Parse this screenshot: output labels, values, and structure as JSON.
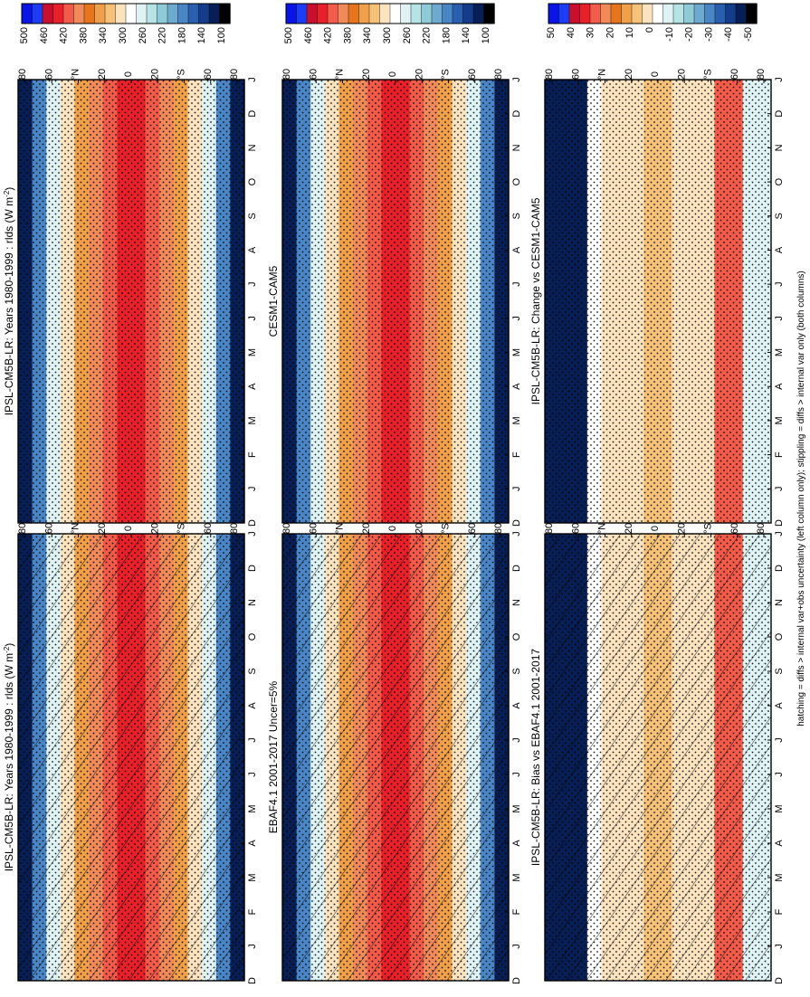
{
  "figure": {
    "footnote": "hatching = diffs > internal var+obs uncertainty (left column only); stippling = diffs > internal var only (both columns)",
    "month_ticks": [
      "D",
      "J",
      "F",
      "M",
      "A",
      "M",
      "J",
      "J",
      "A",
      "S",
      "O",
      "N",
      "D",
      "J"
    ],
    "lat_ticks": [
      "80",
      "60",
      "°N",
      "20",
      "0",
      "20",
      "°S",
      "60",
      "80"
    ]
  },
  "chart_data": [
    {
      "type": "heatmap",
      "title": "IPSL-CM5B-LR: Years 1980-1999 : rlds (W m",
      "title_suffix": "-2",
      "title_close": ")",
      "xlabel": "",
      "ylabel": "",
      "ylim": [
        -90,
        90
      ],
      "colorbar": [
        "500",
        "460",
        "420",
        "380",
        "340",
        "300",
        "260",
        "220",
        "180",
        "140",
        "100"
      ],
      "overlay": "hatch+stipple"
    },
    {
      "type": "heatmap",
      "title": "IPSL-CM5B-LR: Years 1980-1999 : rlds (W m",
      "title_suffix": "-2",
      "title_close": ")",
      "xlabel": "",
      "ylabel": "",
      "ylim": [
        -90,
        90
      ],
      "colorbar": [
        "500",
        "460",
        "420",
        "380",
        "340",
        "300",
        "260",
        "220",
        "180",
        "140",
        "100"
      ],
      "overlay": "stipple"
    },
    {
      "type": "heatmap",
      "title": "EBAF4.1 2001-2017 Uncer=5%",
      "title_suffix": "",
      "title_close": "",
      "xlabel": "",
      "ylabel": "",
      "ylim": [
        -90,
        90
      ],
      "colorbar": [
        "500",
        "460",
        "420",
        "380",
        "340",
        "300",
        "260",
        "220",
        "180",
        "140",
        "100"
      ],
      "overlay": "hatch+stipple"
    },
    {
      "type": "heatmap",
      "title": "CESM1-CAM5",
      "title_suffix": "",
      "title_close": "",
      "xlabel": "",
      "ylabel": "",
      "ylim": [
        -90,
        90
      ],
      "colorbar": [
        "500",
        "460",
        "420",
        "380",
        "340",
        "300",
        "260",
        "220",
        "180",
        "140",
        "100"
      ],
      "overlay": "stipple"
    },
    {
      "type": "heatmap",
      "title": "IPSL-CM5B-LR: Bias vs EBAF4.1 2001-2017",
      "title_suffix": "",
      "title_close": "",
      "xlabel": "",
      "ylabel": "",
      "ylim": [
        -90,
        90
      ],
      "colorbar": [
        "50",
        "40",
        "30",
        "20",
        "10",
        "0",
        "-10",
        "-20",
        "-30",
        "-40",
        "-50"
      ],
      "overlay": "hatch+stipple"
    },
    {
      "type": "heatmap",
      "title": "IPSL-CM5B-LR: Change vs CESM1-CAM5",
      "title_suffix": "",
      "title_close": "",
      "xlabel": "",
      "ylabel": "",
      "ylim": [
        -90,
        90
      ],
      "colorbar": [
        "50",
        "40",
        "30",
        "20",
        "10",
        "0",
        "-10",
        "-20",
        "-30",
        "-40",
        "-50"
      ],
      "overlay": "stipple"
    }
  ],
  "palette": [
    "#0a14e6",
    "#1d3df5",
    "#c8102e",
    "#e8202a",
    "#f25a4a",
    "#f08a5a",
    "#e6761e",
    "#f0a04a",
    "#f6c27a",
    "#fbe3bf",
    "#ffffff",
    "#dff3f5",
    "#b6e3e6",
    "#8fcbd6",
    "#6ea9d0",
    "#4a86c6",
    "#2a5fb0",
    "#143c8a",
    "#081f55",
    "#000000"
  ]
}
